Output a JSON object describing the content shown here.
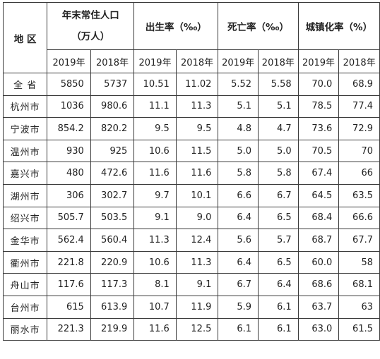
{
  "table": {
    "region_header": "地 区",
    "groups": [
      {
        "line1": "年末常住人口",
        "line2": "（万人）"
      },
      {
        "line1": "出生率（‰）"
      },
      {
        "line1": "死亡率（‰）"
      },
      {
        "line1": "城镇化率（%）"
      }
    ],
    "years": [
      "2019年",
      "2018年"
    ],
    "rows": [
      {
        "region": "全 省",
        "v": [
          "5850",
          "5737",
          "10.51",
          "11.02",
          "5.52",
          "5.58",
          "70.0",
          "68.9"
        ]
      },
      {
        "region": "杭州市",
        "v": [
          "1036",
          "980.6",
          "11.1",
          "11.3",
          "5.1",
          "5.1",
          "78.5",
          "77.4"
        ]
      },
      {
        "region": "宁波市",
        "v": [
          "854.2",
          "820.2",
          "9.5",
          "9.5",
          "4.8",
          "4.7",
          "73.6",
          "72.9"
        ]
      },
      {
        "region": "温州市",
        "v": [
          "930",
          "925",
          "10.6",
          "11.5",
          "5.0",
          "5.0",
          "70.5",
          "70"
        ]
      },
      {
        "region": "嘉兴市",
        "v": [
          "480",
          "472.6",
          "11.6",
          "11.6",
          "5.8",
          "5.8",
          "67.4",
          "66"
        ]
      },
      {
        "region": "湖州市",
        "v": [
          "306",
          "302.7",
          "9.7",
          "10.1",
          "6.6",
          "6.7",
          "64.5",
          "63.5"
        ]
      },
      {
        "region": "绍兴市",
        "v": [
          "505.7",
          "503.5",
          "9.1",
          "9.0",
          "6.4",
          "6.5",
          "68.4",
          "66.6"
        ]
      },
      {
        "region": "金华市",
        "v": [
          "562.4",
          "560.4",
          "11.3",
          "12.4",
          "5.6",
          "5.7",
          "68.7",
          "67.7"
        ]
      },
      {
        "region": "衢州市",
        "v": [
          "221.8",
          "220.9",
          "10.6",
          "11.3",
          "6.4",
          "6.5",
          "60.0",
          "58"
        ]
      },
      {
        "region": "舟山市",
        "v": [
          "117.6",
          "117.3",
          "8.1",
          "9.1",
          "6.7",
          "6.4",
          "68.6",
          "68.1"
        ]
      },
      {
        "region": "台州市",
        "v": [
          "615",
          "613.9",
          "10.7",
          "11.9",
          "5.9",
          "6.1",
          "63.7",
          "63"
        ]
      },
      {
        "region": "丽水市",
        "v": [
          "221.3",
          "219.9",
          "11.6",
          "12.5",
          "6.1",
          "6.1",
          "63.0",
          "61.5"
        ]
      }
    ]
  }
}
